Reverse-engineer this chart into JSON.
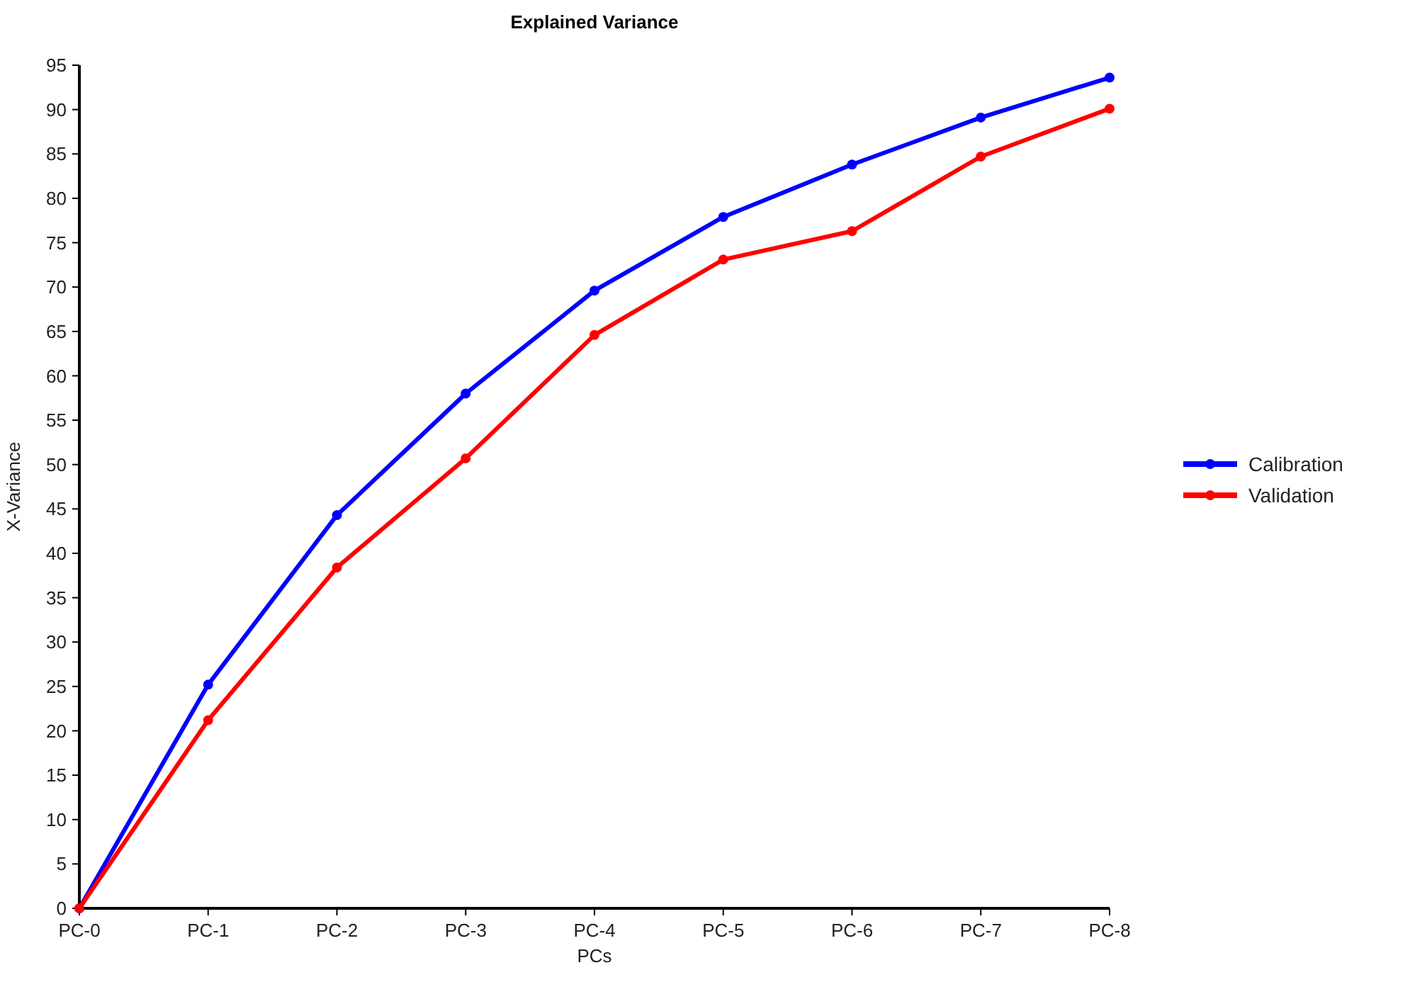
{
  "chart_data": {
    "type": "line",
    "title": "Explained Variance",
    "xlabel": "PCs",
    "ylabel": "X-Variance",
    "categories": [
      "PC-0",
      "PC-1",
      "PC-2",
      "PC-3",
      "PC-4",
      "PC-5",
      "PC-6",
      "PC-7",
      "PC-8"
    ],
    "series": [
      {
        "name": "Calibration",
        "color": "#0000ff",
        "values": [
          0,
          25.2,
          44.3,
          58,
          69.6,
          77.9,
          83.8,
          89.1,
          93.6
        ]
      },
      {
        "name": "Validation",
        "color": "#ff0000",
        "values": [
          0,
          21.2,
          38.4,
          50.7,
          64.6,
          73.1,
          76.3,
          84.7,
          90.1
        ]
      }
    ],
    "ylim": [
      0,
      95
    ],
    "yticks": [
      0,
      5,
      10,
      15,
      20,
      25,
      30,
      35,
      40,
      45,
      50,
      55,
      60,
      65,
      70,
      75,
      80,
      85,
      90,
      95
    ],
    "grid": false,
    "legend": "right",
    "marker": "circle",
    "line_style": "solid"
  }
}
